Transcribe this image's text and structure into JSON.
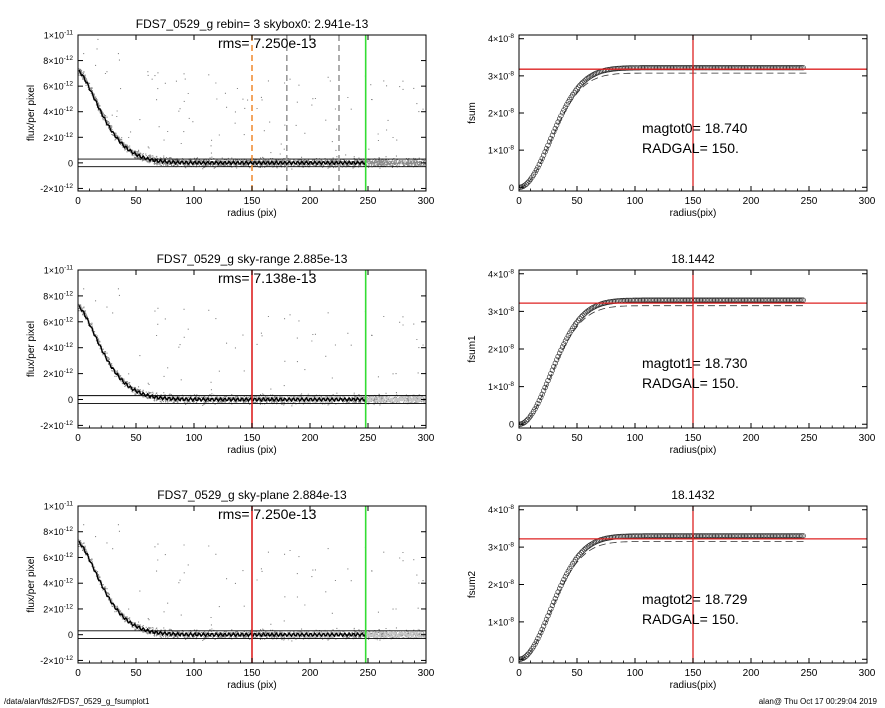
{
  "chart_data": [
    {
      "type": "scatter",
      "title": "FDS7_0529_g rebin= 3    skybox0:  2.941e-13",
      "annotation": "rms= 7.250e-13",
      "xlabel": "radius (pix)",
      "ylabel": "flux/per pixel",
      "xlim": [
        0,
        300
      ],
      "ylim": [
        -2.2e-12,
        1e-11
      ],
      "x_ticks": [
        "0",
        "50",
        "100",
        "150",
        "200",
        "250",
        "300"
      ],
      "y_ticks": [
        {
          "mant": "-2",
          "exp": "-12",
          "value": -2e-12
        },
        {
          "mant": "0",
          "exp": "",
          "value": 0
        },
        {
          "mant": "2",
          "exp": "-12",
          "value": 2e-12
        },
        {
          "mant": "4",
          "exp": "-12",
          "value": 4e-12
        },
        {
          "mant": "6",
          "exp": "-12",
          "value": 6e-12
        },
        {
          "mant": "8",
          "exp": "-12",
          "value": 8e-12
        },
        {
          "mant": "1",
          "exp": "-11",
          "value": 1e-11,
          "times": true
        }
      ],
      "profile_peak": 7.2e-12,
      "profile_scale": 28,
      "sky_band": [
        3e-13,
        -3e-13
      ],
      "vlines": [
        {
          "x": 150,
          "color": "#f0903a",
          "dash": "6,4"
        },
        {
          "x": 180,
          "color": "#999999",
          "dash": "6,4"
        },
        {
          "x": 225,
          "color": "#999999",
          "dash": "6,4"
        },
        {
          "x": 248,
          "color": "#33dd33",
          "dash": ""
        }
      ],
      "box_regions": []
    },
    {
      "type": "scatter",
      "title": "",
      "xlabel": "radius(pix)",
      "ylabel": "fsum",
      "xlim": [
        0,
        300
      ],
      "ylim": [
        -1e-09,
        4.1e-08
      ],
      "x_ticks": [
        "0",
        "50",
        "100",
        "150",
        "200",
        "250",
        "300"
      ],
      "y_ticks": [
        {
          "mant": "0",
          "exp": "",
          "value": 0
        },
        {
          "mant": "1×10",
          "exp": "-8",
          "value": 1e-08
        },
        {
          "mant": "2×10",
          "exp": "-8",
          "value": 2e-08
        },
        {
          "mant": "3×10",
          "exp": "-8",
          "value": 3e-08
        },
        {
          "mant": "4×10",
          "exp": "-8",
          "value": 4e-08
        }
      ],
      "asymptote": 3.22e-08,
      "curve_scale": 38,
      "curve_lower_factor": 0.955,
      "hline": 3.18e-08,
      "vline": 150,
      "text_lines": [
        "magtot0=  18.740",
        "RADGAL=    150."
      ]
    },
    {
      "type": "scatter",
      "title": "FDS7_0529_g sky-range  2.885e-13",
      "annotation": "rms= 7.138e-13",
      "xlabel": "radius (pix)",
      "ylabel": "flux/per pixel",
      "xlim": [
        0,
        300
      ],
      "ylim": [
        -2.2e-12,
        1e-11
      ],
      "x_ticks": [
        "0",
        "50",
        "100",
        "150",
        "200",
        "250",
        "300"
      ],
      "y_ticks": [
        {
          "mant": "-2",
          "exp": "-12",
          "value": -2e-12
        },
        {
          "mant": "0",
          "exp": "",
          "value": 0
        },
        {
          "mant": "2",
          "exp": "-12",
          "value": 2e-12
        },
        {
          "mant": "4",
          "exp": "-12",
          "value": 4e-12
        },
        {
          "mant": "6",
          "exp": "-12",
          "value": 6e-12
        },
        {
          "mant": "8",
          "exp": "-12",
          "value": 8e-12
        },
        {
          "mant": "1",
          "exp": "-11",
          "value": 1e-11,
          "times": true
        }
      ],
      "profile_peak": 7.2e-12,
      "profile_scale": 28,
      "sky_band": [
        3e-13,
        -3e-13
      ],
      "vlines": [
        {
          "x": 150,
          "color": "#dd2222",
          "dash": ""
        },
        {
          "x": 248,
          "color": "#33dd33",
          "dash": ""
        }
      ],
      "box_regions": [
        [
          180,
          225
        ],
        [
          248,
          300
        ]
      ]
    },
    {
      "type": "scatter",
      "title": "18.1442",
      "xlabel": "radius(pix)",
      "ylabel": "fsum1",
      "xlim": [
        0,
        300
      ],
      "ylim": [
        -1e-09,
        4.1e-08
      ],
      "x_ticks": [
        "0",
        "50",
        "100",
        "150",
        "200",
        "250",
        "300"
      ],
      "y_ticks": [
        {
          "mant": "0",
          "exp": "",
          "value": 0
        },
        {
          "mant": "1×10",
          "exp": "-8",
          "value": 1e-08
        },
        {
          "mant": "2×10",
          "exp": "-8",
          "value": 2e-08
        },
        {
          "mant": "3×10",
          "exp": "-8",
          "value": 3e-08
        },
        {
          "mant": "4×10",
          "exp": "-8",
          "value": 4e-08
        }
      ],
      "asymptote": 3.3e-08,
      "curve_scale": 38,
      "curve_lower_factor": 0.955,
      "hline": 3.22e-08,
      "vline": 150,
      "text_lines": [
        "magtot1=  18.730",
        "RADGAL=    150."
      ]
    },
    {
      "type": "scatter",
      "title": "FDS7_0529_g sky-plane  2.884e-13",
      "annotation": "rms= 7.250e-13",
      "xlabel": "radius (pix)",
      "ylabel": "flux/per pixel",
      "xlim": [
        0,
        300
      ],
      "ylim": [
        -2.2e-12,
        1e-11
      ],
      "x_ticks": [
        "0",
        "50",
        "100",
        "150",
        "200",
        "250",
        "300"
      ],
      "y_ticks": [
        {
          "mant": "-2",
          "exp": "-12",
          "value": -2e-12
        },
        {
          "mant": "0",
          "exp": "",
          "value": 0
        },
        {
          "mant": "2",
          "exp": "-12",
          "value": 2e-12
        },
        {
          "mant": "4",
          "exp": "-12",
          "value": 4e-12
        },
        {
          "mant": "6",
          "exp": "-12",
          "value": 6e-12
        },
        {
          "mant": "8",
          "exp": "-12",
          "value": 8e-12
        },
        {
          "mant": "1",
          "exp": "-11",
          "value": 1e-11,
          "times": true
        }
      ],
      "profile_peak": 7.2e-12,
      "profile_scale": 28,
      "sky_band": [
        3e-13,
        -3e-13
      ],
      "vlines": [
        {
          "x": 150,
          "color": "#dd2222",
          "dash": ""
        },
        {
          "x": 248,
          "color": "#33dd33",
          "dash": ""
        }
      ],
      "box_regions": [
        [
          180,
          225
        ],
        [
          248,
          300
        ]
      ]
    },
    {
      "type": "scatter",
      "title": "18.1432",
      "xlabel": "radius(pix)",
      "ylabel": "fsum2",
      "xlim": [
        0,
        300
      ],
      "ylim": [
        -1e-09,
        4.1e-08
      ],
      "x_ticks": [
        "0",
        "50",
        "100",
        "150",
        "200",
        "250",
        "300"
      ],
      "y_ticks": [
        {
          "mant": "0",
          "exp": "",
          "value": 0
        },
        {
          "mant": "1×10",
          "exp": "-8",
          "value": 1e-08
        },
        {
          "mant": "2×10",
          "exp": "-8",
          "value": 2e-08
        },
        {
          "mant": "3×10",
          "exp": "-8",
          "value": 3e-08
        },
        {
          "mant": "4×10",
          "exp": "-8",
          "value": 4e-08
        }
      ],
      "asymptote": 3.3e-08,
      "curve_scale": 38,
      "curve_lower_factor": 0.955,
      "hline": 3.22e-08,
      "vline": 150,
      "text_lines": [
        "magtot2=  18.729",
        "RADGAL=    150."
      ]
    }
  ],
  "footer": {
    "left": "/data/alan/fds2/FDS7_0529_g_fsumplot1",
    "right": "alan@  Thu Oct 17 00:29:04 2019"
  }
}
